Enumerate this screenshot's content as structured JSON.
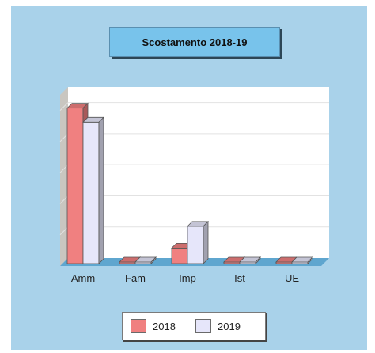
{
  "chart_data": {
    "type": "bar",
    "title": "Scostamento 2018-19",
    "categories": [
      "Amm",
      "Fam",
      "Imp",
      "Ist",
      "UE"
    ],
    "series": [
      {
        "name": "2018",
        "values": [
          100,
          0.5,
          10,
          0.5,
          0.5
        ]
      },
      {
        "name": "2019",
        "values": [
          91,
          0.5,
          24,
          0.5,
          0.5
        ]
      }
    ],
    "ylim": [
      0,
      110
    ],
    "grid": true,
    "legend": "bottom",
    "colors": {
      "series_2018": "#f08080",
      "series_2019": "#e6e6fa",
      "panel_background": "#a9d2ea",
      "title_background": "#78c3eb",
      "plot_background": "#ffffff"
    }
  }
}
